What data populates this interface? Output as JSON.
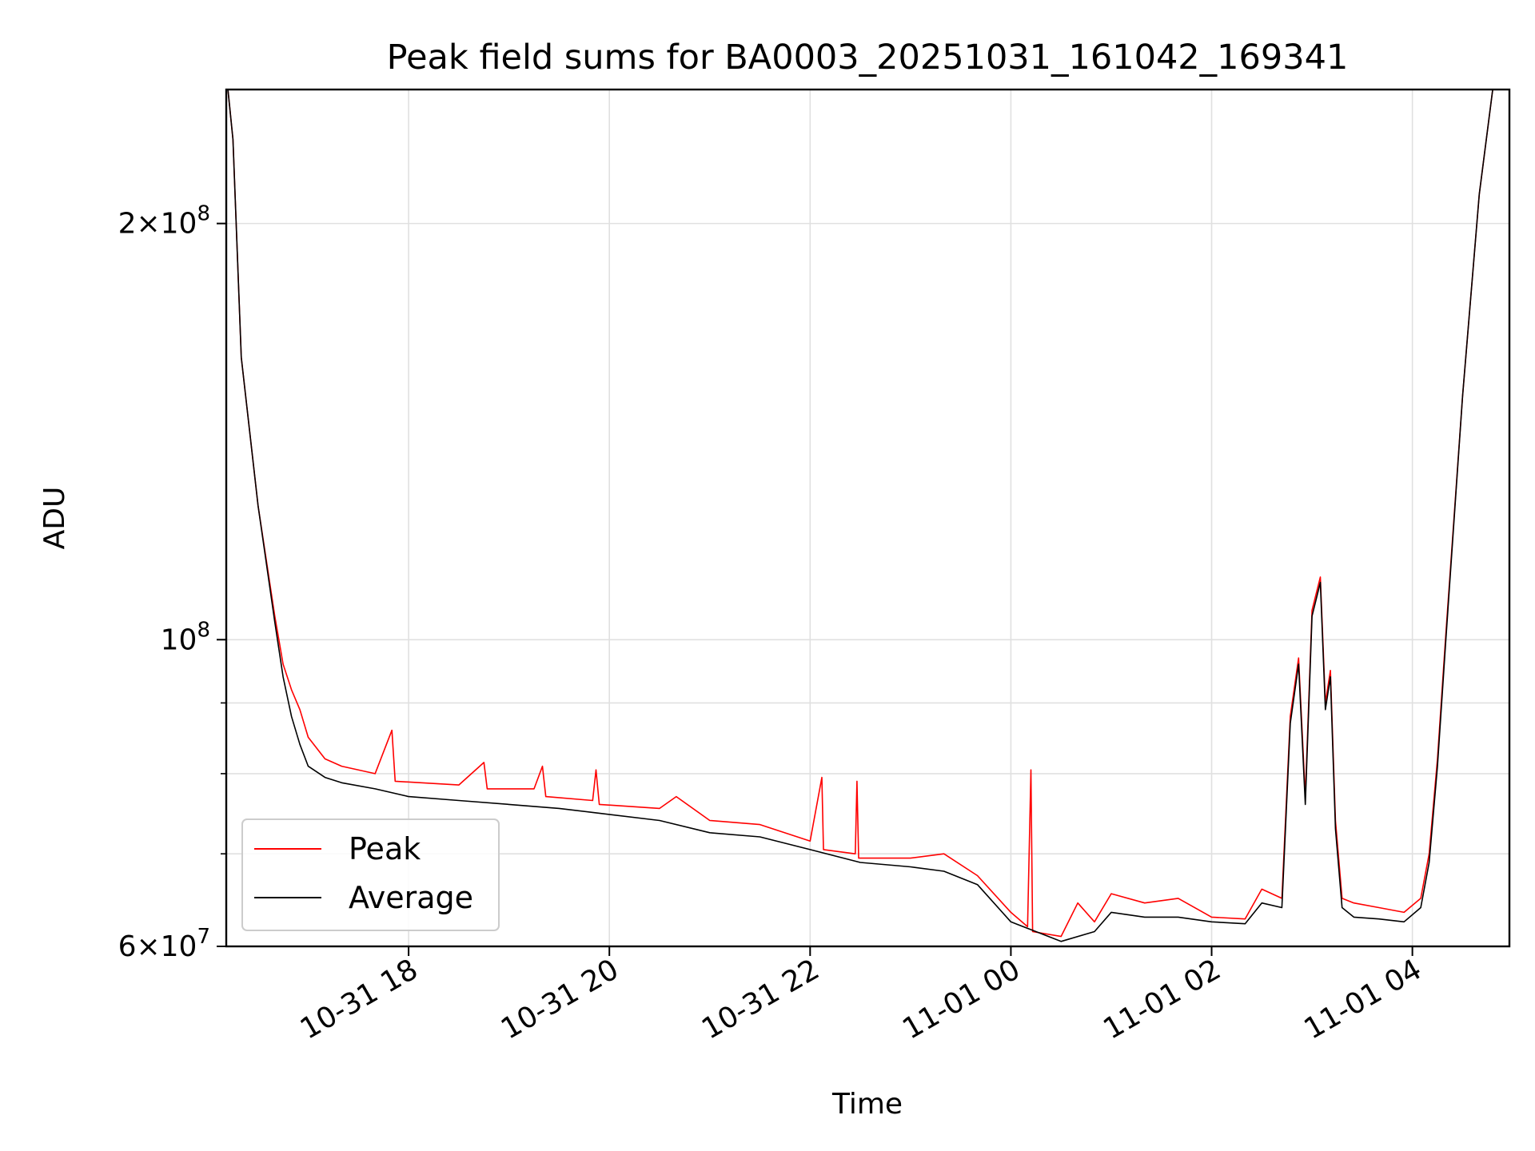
{
  "chart_data": {
    "type": "line",
    "title": "Peak field sums for BA0003_20251031_161042_169341",
    "xlabel": "Time",
    "ylabel": "ADU",
    "y_scale": "log",
    "ylim": [
      60000000,
      250000000
    ],
    "xlim": [
      "2025-10-31 16:11",
      "2025-11-01 04:58"
    ],
    "grid": true,
    "legend_position": "lower-left",
    "x_ticks": [
      {
        "t": "2025-10-31 18:00",
        "label": "10-31 18"
      },
      {
        "t": "2025-10-31 20:00",
        "label": "10-31 20"
      },
      {
        "t": "2025-10-31 22:00",
        "label": "10-31 22"
      },
      {
        "t": "2025-11-01 00:00",
        "label": "11-01 00"
      },
      {
        "t": "2025-11-01 02:00",
        "label": "11-01 02"
      },
      {
        "t": "2025-11-01 04:00",
        "label": "11-01 04"
      }
    ],
    "y_ticks": [
      {
        "value": 60000000,
        "mantissa": "6",
        "exp": "7"
      },
      {
        "value": 100000000,
        "mantissa": "",
        "exp": "8"
      },
      {
        "value": 200000000,
        "mantissa": "2",
        "exp": "8"
      }
    ],
    "y_minor": [
      70000000,
      80000000,
      90000000
    ],
    "series": [
      {
        "name": "Peak",
        "color": "#ff0000",
        "points": [
          [
            "2025-10-31 16:12",
            250000000
          ],
          [
            "2025-10-31 16:15",
            230000000
          ],
          [
            "2025-10-31 16:20",
            160000000
          ],
          [
            "2025-10-31 16:30",
            125000000
          ],
          [
            "2025-10-31 16:40",
            104000000
          ],
          [
            "2025-10-31 16:45",
            96000000
          ],
          [
            "2025-10-31 16:50",
            92000000
          ],
          [
            "2025-10-31 16:55",
            89000000
          ],
          [
            "2025-10-31 17:00",
            85000000
          ],
          [
            "2025-10-31 17:10",
            82000000
          ],
          [
            "2025-10-31 17:20",
            81000000
          ],
          [
            "2025-10-31 17:40",
            80000000
          ],
          [
            "2025-10-31 17:50",
            86000000
          ],
          [
            "2025-10-31 17:52",
            79000000
          ],
          [
            "2025-10-31 18:30",
            78500000
          ],
          [
            "2025-10-31 18:45",
            81500000
          ],
          [
            "2025-10-31 18:47",
            78000000
          ],
          [
            "2025-10-31 19:15",
            78000000
          ],
          [
            "2025-10-31 19:20",
            81000000
          ],
          [
            "2025-10-31 19:22",
            77000000
          ],
          [
            "2025-10-31 19:50",
            76500000
          ],
          [
            "2025-10-31 19:52",
            80500000
          ],
          [
            "2025-10-31 19:54",
            76000000
          ],
          [
            "2025-10-31 20:30",
            75500000
          ],
          [
            "2025-10-31 20:40",
            77000000
          ],
          [
            "2025-10-31 21:00",
            74000000
          ],
          [
            "2025-10-31 21:30",
            73500000
          ],
          [
            "2025-10-31 22:00",
            71500000
          ],
          [
            "2025-10-31 22:07",
            79500000
          ],
          [
            "2025-10-31 22:08",
            70500000
          ],
          [
            "2025-10-31 22:27",
            70000000
          ],
          [
            "2025-10-31 22:28",
            79000000
          ],
          [
            "2025-10-31 22:29",
            69500000
          ],
          [
            "2025-10-31 23:00",
            69500000
          ],
          [
            "2025-10-31 23:20",
            70000000
          ],
          [
            "2025-10-31 23:40",
            67500000
          ],
          [
            "2025-11-01 00:00",
            63500000
          ],
          [
            "2025-11-01 00:10",
            62000000
          ],
          [
            "2025-11-01 00:12",
            80500000
          ],
          [
            "2025-11-01 00:13",
            61500000
          ],
          [
            "2025-11-01 00:30",
            61000000
          ],
          [
            "2025-11-01 00:40",
            64500000
          ],
          [
            "2025-11-01 00:50",
            62500000
          ],
          [
            "2025-11-01 01:00",
            65500000
          ],
          [
            "2025-11-01 01:20",
            64500000
          ],
          [
            "2025-11-01 01:40",
            65000000
          ],
          [
            "2025-11-01 02:00",
            63000000
          ],
          [
            "2025-11-01 02:20",
            62800000
          ],
          [
            "2025-11-01 02:30",
            66000000
          ],
          [
            "2025-11-01 02:42",
            65000000
          ],
          [
            "2025-11-01 02:47",
            88000000
          ],
          [
            "2025-11-01 02:52",
            97000000
          ],
          [
            "2025-11-01 02:56",
            77000000
          ],
          [
            "2025-11-01 03:00",
            105000000
          ],
          [
            "2025-11-01 03:05",
            111000000
          ],
          [
            "2025-11-01 03:08",
            90000000
          ],
          [
            "2025-11-01 03:11",
            95000000
          ],
          [
            "2025-11-01 03:14",
            74000000
          ],
          [
            "2025-11-01 03:18",
            65000000
          ],
          [
            "2025-11-01 03:25",
            64500000
          ],
          [
            "2025-11-01 03:40",
            64000000
          ],
          [
            "2025-11-01 03:55",
            63500000
          ],
          [
            "2025-11-01 04:05",
            65000000
          ],
          [
            "2025-11-01 04:10",
            70000000
          ],
          [
            "2025-11-01 04:15",
            82000000
          ],
          [
            "2025-11-01 04:20",
            101000000
          ],
          [
            "2025-11-01 04:30",
            150000000
          ],
          [
            "2025-11-01 04:40",
            210000000
          ],
          [
            "2025-11-01 04:48",
            250000000
          ]
        ]
      },
      {
        "name": "Average",
        "color": "#000000",
        "points": [
          [
            "2025-10-31 16:12",
            250000000
          ],
          [
            "2025-10-31 16:15",
            230000000
          ],
          [
            "2025-10-31 16:20",
            160000000
          ],
          [
            "2025-10-31 16:30",
            125000000
          ],
          [
            "2025-10-31 16:40",
            103000000
          ],
          [
            "2025-10-31 16:45",
            94000000
          ],
          [
            "2025-10-31 16:50",
            88000000
          ],
          [
            "2025-10-31 16:55",
            84000000
          ],
          [
            "2025-10-31 17:00",
            81000000
          ],
          [
            "2025-10-31 17:10",
            79500000
          ],
          [
            "2025-10-31 17:20",
            78800000
          ],
          [
            "2025-10-31 17:40",
            78000000
          ],
          [
            "2025-10-31 18:00",
            77000000
          ],
          [
            "2025-10-31 18:30",
            76500000
          ],
          [
            "2025-10-31 19:00",
            76000000
          ],
          [
            "2025-10-31 19:30",
            75500000
          ],
          [
            "2025-10-31 19:50",
            75000000
          ],
          [
            "2025-10-31 20:30",
            74000000
          ],
          [
            "2025-10-31 21:00",
            72500000
          ],
          [
            "2025-10-31 21:30",
            72000000
          ],
          [
            "2025-10-31 22:00",
            70500000
          ],
          [
            "2025-10-31 22:30",
            69000000
          ],
          [
            "2025-10-31 23:00",
            68500000
          ],
          [
            "2025-10-31 23:20",
            68000000
          ],
          [
            "2025-10-31 23:40",
            66500000
          ],
          [
            "2025-11-01 00:00",
            62500000
          ],
          [
            "2025-11-01 00:15",
            61500000
          ],
          [
            "2025-11-01 00:30",
            60500000
          ],
          [
            "2025-11-01 00:50",
            61500000
          ],
          [
            "2025-11-01 01:00",
            63500000
          ],
          [
            "2025-11-01 01:20",
            63000000
          ],
          [
            "2025-11-01 01:40",
            63000000
          ],
          [
            "2025-11-01 02:00",
            62500000
          ],
          [
            "2025-11-01 02:20",
            62300000
          ],
          [
            "2025-11-01 02:30",
            64500000
          ],
          [
            "2025-11-01 02:42",
            64000000
          ],
          [
            "2025-11-01 02:47",
            87000000
          ],
          [
            "2025-11-01 02:52",
            96000000
          ],
          [
            "2025-11-01 02:56",
            76000000
          ],
          [
            "2025-11-01 03:00",
            104000000
          ],
          [
            "2025-11-01 03:05",
            110000000
          ],
          [
            "2025-11-01 03:08",
            89000000
          ],
          [
            "2025-11-01 03:11",
            94000000
          ],
          [
            "2025-11-01 03:14",
            73000000
          ],
          [
            "2025-11-01 03:18",
            64000000
          ],
          [
            "2025-11-01 03:25",
            63000000
          ],
          [
            "2025-11-01 03:40",
            62800000
          ],
          [
            "2025-11-01 03:55",
            62500000
          ],
          [
            "2025-11-01 04:05",
            64000000
          ],
          [
            "2025-11-01 04:10",
            69000000
          ],
          [
            "2025-11-01 04:15",
            81000000
          ],
          [
            "2025-11-01 04:20",
            100000000
          ],
          [
            "2025-11-01 04:30",
            150000000
          ],
          [
            "2025-11-01 04:40",
            210000000
          ],
          [
            "2025-11-01 04:48",
            250000000
          ]
        ]
      }
    ]
  }
}
